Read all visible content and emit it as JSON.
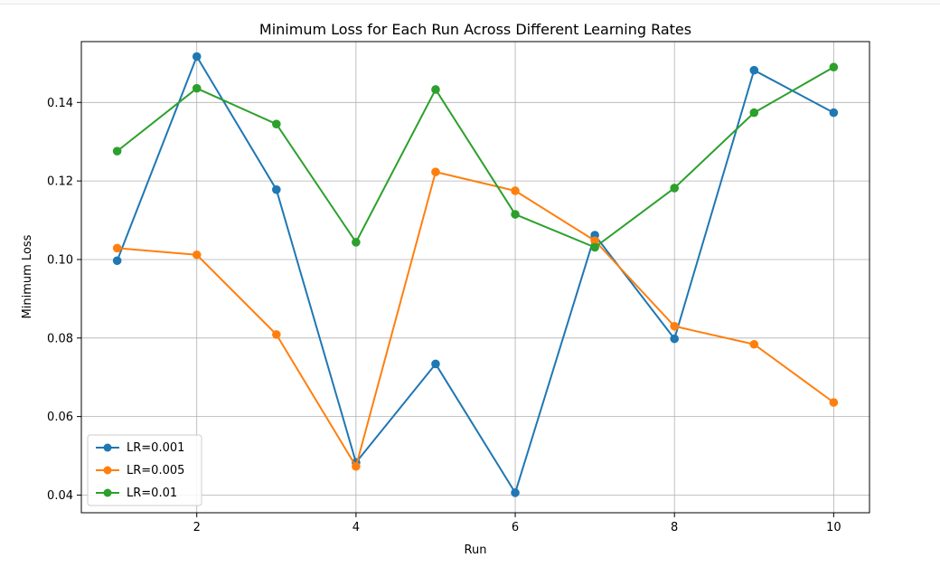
{
  "chart_data": {
    "type": "line",
    "title": "Minimum Loss for Each Run Across Different Learning Rates",
    "xlabel": "Run",
    "ylabel": "Minimum Loss",
    "xlim": [
      0.55,
      10.45
    ],
    "ylim": [
      0.0355,
      0.1555
    ],
    "x": [
      1,
      2,
      3,
      4,
      5,
      6,
      7,
      8,
      9,
      10
    ],
    "xticks": [
      2,
      4,
      6,
      8,
      10
    ],
    "yticks": [
      0.04,
      0.06,
      0.08,
      0.1,
      0.12,
      0.14
    ],
    "ytick_labels": [
      "0.04",
      "0.06",
      "0.08",
      "0.10",
      "0.12",
      "0.14"
    ],
    "grid": true,
    "legend_position": "lower-left",
    "series": [
      {
        "name": "LR=0.001",
        "color": "#1f77b4",
        "values": [
          0.0997,
          0.1517,
          0.1178,
          0.0483,
          0.0734,
          0.0406,
          0.1062,
          0.0798,
          0.1482,
          0.1374
        ]
      },
      {
        "name": "LR=0.005",
        "color": "#ff7f0e",
        "values": [
          0.1029,
          0.1012,
          0.0809,
          0.0473,
          0.1223,
          0.1175,
          0.1048,
          0.083,
          0.0784,
          0.0636
        ]
      },
      {
        "name": "LR=0.01",
        "color": "#2ca02c",
        "values": [
          0.1276,
          0.1436,
          0.1345,
          0.1044,
          0.1433,
          0.1115,
          0.1031,
          0.1182,
          0.1374,
          0.149
        ]
      }
    ]
  }
}
